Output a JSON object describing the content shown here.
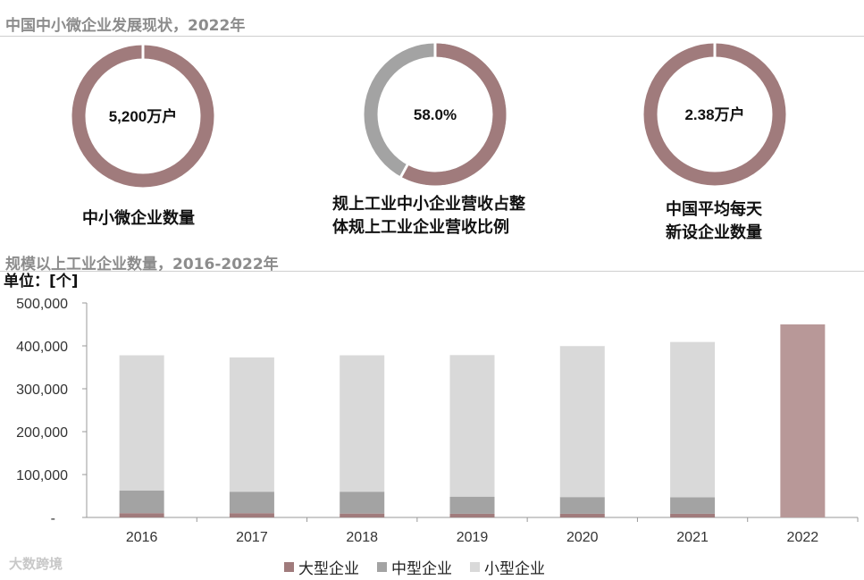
{
  "top_section": {
    "title": "中国中小微企业发展现状，2022年",
    "donuts": [
      {
        "center": "5,200万户",
        "label_lines": [
          "中小微企业数量"
        ],
        "fraction": 1.0
      },
      {
        "center": "58.0%",
        "label_lines": [
          "规上工业中小企业营收占整",
          "体规上工业企业营收比例"
        ],
        "fraction": 0.58
      },
      {
        "center": "2.38万户",
        "label_lines": [
          "中国平均每天",
          "新设企业数量"
        ],
        "fraction": 1.0
      }
    ]
  },
  "bottom_section": {
    "title": "规模以上工业企业数量，2016-2022年",
    "unit_label": "单位：[个]"
  },
  "colors": {
    "large": "#a07b7c",
    "medium": "#a3a3a3",
    "small": "#d9d9d9",
    "large_2022": "#b89898"
  },
  "watermark": "大数跨境",
  "chart_data": {
    "type": "bar",
    "stacked": true,
    "categories": [
      "2016",
      "2017",
      "2018",
      "2019",
      "2020",
      "2021",
      "2022"
    ],
    "series": [
      {
        "name": "大型企业",
        "values": [
          10000,
          10000,
          9000,
          8500,
          8500,
          8500,
          450000
        ]
      },
      {
        "name": "中型企业",
        "values": [
          53000,
          50000,
          51000,
          40000,
          39000,
          38500,
          0
        ]
      },
      {
        "name": "小型企业",
        "values": [
          315000,
          313000,
          318000,
          330000,
          352000,
          362000,
          0
        ]
      }
    ],
    "ylim": [
      0,
      500000
    ],
    "yticks": [
      "-",
      "100,000",
      "200,000",
      "300,000",
      "400,000",
      "500,000"
    ],
    "legend_position": "bottom"
  }
}
